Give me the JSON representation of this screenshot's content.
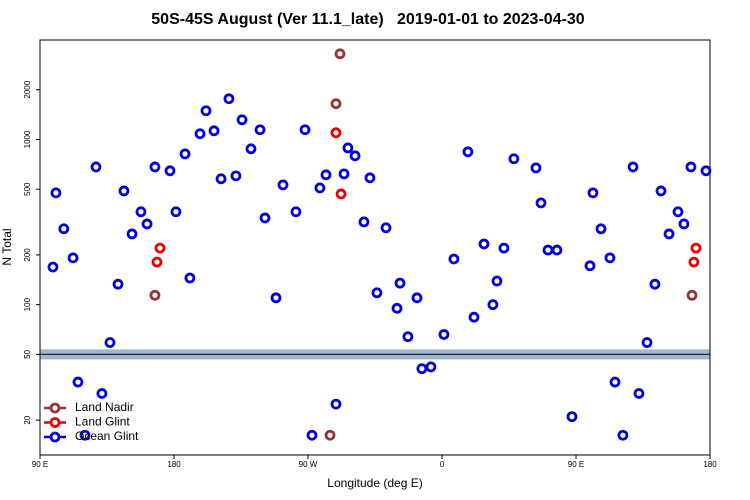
{
  "chart_data": {
    "type": "scatter",
    "title": "50S-45S August (Ver 11.1_late)   2019-01-01 to 2023-04-30",
    "xlabel": "Longitude (deg E)",
    "ylabel": "N Total",
    "yscale": "log",
    "xlim": [
      90,
      540
    ],
    "ylim": [
      12.3,
      4000
    ],
    "xticks": [
      {
        "value": 90,
        "label": "90 E"
      },
      {
        "value": 180,
        "label": "180"
      },
      {
        "value": 270,
        "label": "90 W"
      },
      {
        "value": 360,
        "label": "0"
      },
      {
        "value": 450,
        "label": "90 E"
      },
      {
        "value": 540,
        "label": "180"
      }
    ],
    "yticks": [
      20,
      50,
      100,
      200,
      500,
      1000,
      2000
    ],
    "hline": 50,
    "legend": "lower left",
    "series": [
      {
        "name": "Land Nadir",
        "color": "#993333",
        "x": [
          167.2,
          291.5,
          288.8,
          284.8,
          527.9
        ],
        "values": [
          114,
          3300,
          1646,
          16.2,
          114
        ]
      },
      {
        "name": "Land Glint",
        "color": "#ee0000",
        "x": [
          170.6,
          168.6,
          288.8,
          292.2,
          530.6,
          529.2
        ],
        "values": [
          220,
          181,
          1098,
          468,
          220,
          181
        ]
      },
      {
        "name": "Ocean Glint",
        "color": "#0000dd",
        "x": [
          98.7,
          100.7,
          106.0,
          112.2,
          115.5,
          120.2,
          127.6,
          131.6,
          137.0,
          142.4,
          146.4,
          151.8,
          157.8,
          161.9,
          167.2,
          177.3,
          181.3,
          187.4,
          190.7,
          197.5,
          201.5,
          206.9,
          211.6,
          216.9,
          221.6,
          225.7,
          231.7,
          237.8,
          241.1,
          248.5,
          253.2,
          261.9,
          268.0,
          272.7,
          278.0,
          282.1,
          288.8,
          294.2,
          296.8,
          301.6,
          307.6,
          311.6,
          316.3,
          322.4,
          329.8,
          331.8,
          337.1,
          343.2,
          346.5,
          352.6,
          361.3,
          368.0,
          377.4,
          381.5,
          388.2,
          394.2,
          396.9,
          401.6,
          408.3,
          423.1,
          426.5,
          431.2,
          437.2,
          447.3,
          459.4,
          461.4,
          466.8,
          472.8,
          476.2,
          481.5,
          488.3,
          492.3,
          497.7,
          503.0,
          507.1,
          512.5,
          518.5,
          522.5,
          527.2,
          537.3
        ],
        "values": [
          169,
          475,
          288,
          192,
          34,
          16.2,
          682,
          29,
          59,
          133,
          488,
          268,
          365,
          308,
          682,
          646,
          365,
          818,
          145,
          1083,
          1492,
          1128,
          578,
          1764,
          602,
          1316,
          878,
          1145,
          335,
          110,
          531,
          365,
          1145,
          16.2,
          509,
          611,
          25,
          619,
          889,
          796,
          317,
          586,
          118,
          292,
          95,
          135,
          64,
          110,
          41,
          42,
          66,
          189,
          842,
          84,
          233,
          100,
          139,
          220,
          764,
          673,
          413,
          214,
          214,
          21,
          172,
          475,
          288,
          192,
          34,
          16.2,
          682,
          29,
          59,
          133,
          488,
          268,
          365,
          308,
          682,
          646
        ]
      }
    ]
  }
}
